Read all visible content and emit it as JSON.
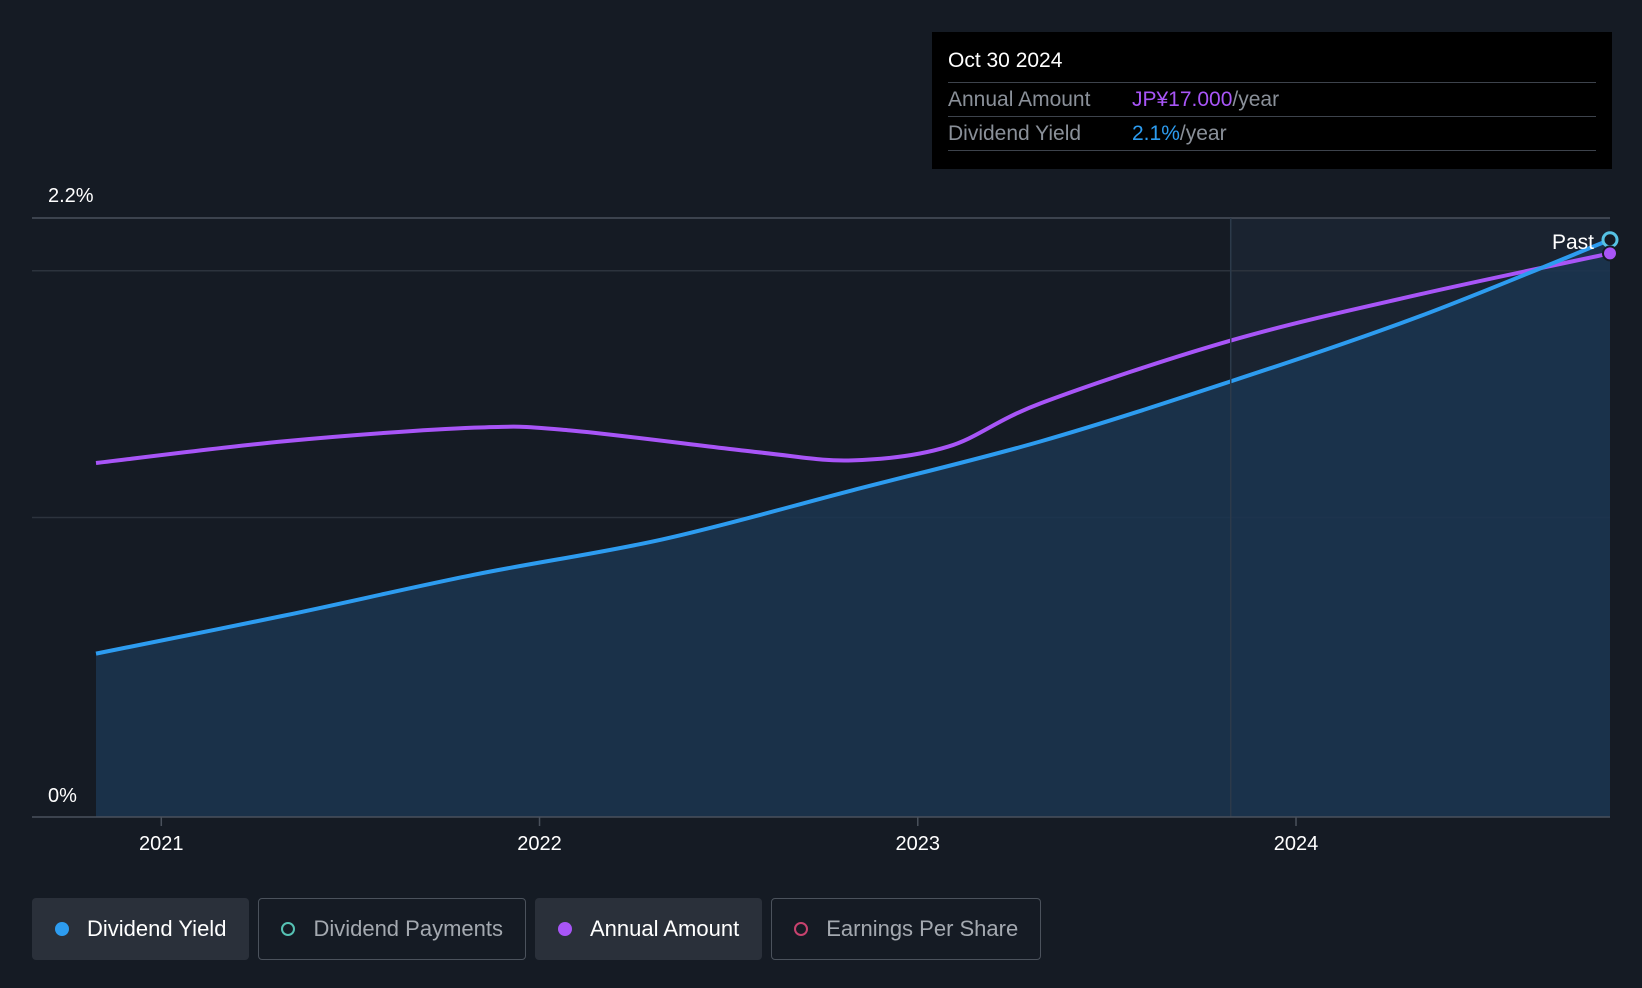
{
  "tooltip": {
    "date": "Oct 30 2024",
    "rows": [
      {
        "label": "Annual Amount",
        "value": "JP¥17.000",
        "unit": "/year",
        "color": "#a855f7"
      },
      {
        "label": "Dividend Yield",
        "value": "2.1%",
        "unit": "/year",
        "color": "#2d9cf0"
      }
    ]
  },
  "legend": [
    {
      "label": "Dividend Yield",
      "color": "#2d9cf0",
      "active": true,
      "filled": true
    },
    {
      "label": "Dividend Payments",
      "color": "#56c2b4",
      "active": false,
      "filled": false
    },
    {
      "label": "Annual Amount",
      "color": "#a855f7",
      "active": true,
      "filled": true
    },
    {
      "label": "Earnings Per Share",
      "color": "#c7426e",
      "active": false,
      "filled": false
    }
  ],
  "chart_data": {
    "type": "line",
    "past_label": "Past",
    "y_axis": {
      "range": [
        0,
        2.2
      ],
      "unit": "%",
      "tick_labels": [
        "2.2%",
        "0%"
      ]
    },
    "x_axis": {
      "range": [
        "2020-10-30",
        "2024-10-30"
      ],
      "tick_labels": [
        "2021",
        "2022",
        "2023",
        "2024"
      ],
      "ticks": [
        "2021-01-01",
        "2022-01-01",
        "2023-01-01",
        "2024-01-01"
      ]
    },
    "past_region_start": "2023-10-30",
    "grid": true,
    "series": [
      {
        "name": "Dividend Yield",
        "color": "#2d9cf0",
        "area": true,
        "points": [
          [
            "2020-10-30",
            0.6
          ],
          [
            "2021-04-30",
            0.74
          ],
          [
            "2021-10-30",
            0.89
          ],
          [
            "2022-04-30",
            1.02
          ],
          [
            "2022-10-30",
            1.2
          ],
          [
            "2023-04-30",
            1.38
          ],
          [
            "2023-10-30",
            1.6
          ],
          [
            "2024-04-30",
            1.84
          ],
          [
            "2024-10-30",
            2.12
          ]
        ]
      },
      {
        "name": "Annual Amount",
        "color": "#a855f7",
        "area": false,
        "points": [
          [
            "2020-10-30",
            1.3
          ],
          [
            "2021-04-30",
            1.38
          ],
          [
            "2021-10-30",
            1.43
          ],
          [
            "2022-01-30",
            1.42
          ],
          [
            "2022-07-30",
            1.34
          ],
          [
            "2022-10-30",
            1.31
          ],
          [
            "2023-01-30",
            1.36
          ],
          [
            "2023-04-30",
            1.52
          ],
          [
            "2023-10-30",
            1.75
          ],
          [
            "2024-04-30",
            1.92
          ],
          [
            "2024-10-30",
            2.07
          ]
        ]
      }
    ]
  }
}
